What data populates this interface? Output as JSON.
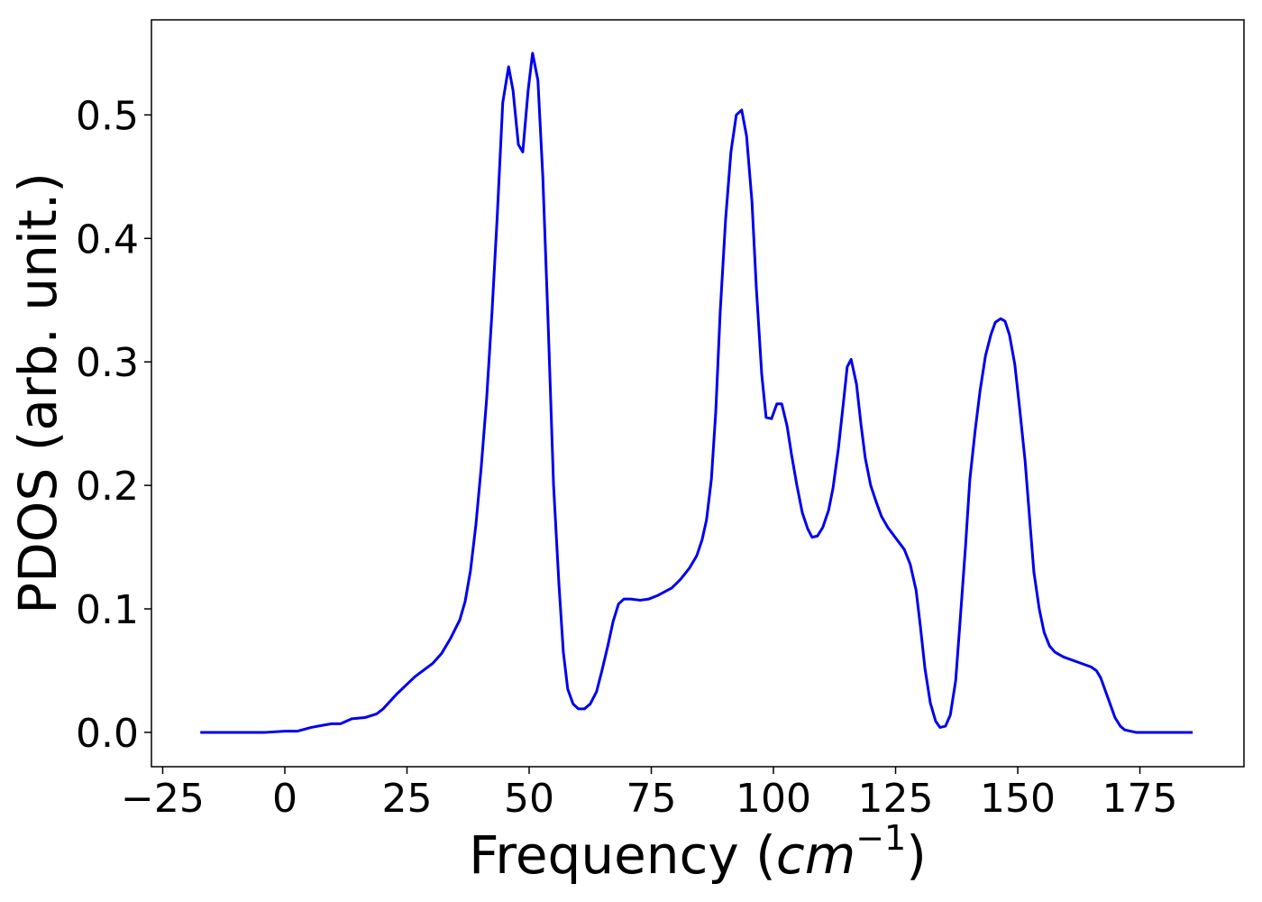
{
  "chart_data": {
    "type": "line",
    "xlabel": [
      "Frequency (",
      "cm",
      "−1",
      ")"
    ],
    "ylabel": "PDOS (arb. unit.)",
    "xlim": [
      -27.3,
      196.3
    ],
    "ylim": [
      -0.0278,
      0.577
    ],
    "xticks": [
      {
        "value": -25,
        "label": "−25"
      },
      0,
      25,
      50,
      75,
      100,
      125,
      150,
      175
    ],
    "yticks": [
      {
        "value": 0,
        "label": "0.0"
      },
      0.1,
      0.2,
      0.3,
      0.4,
      0.5
    ],
    "grid": false,
    "series": [
      {
        "color": "#0000ee",
        "x": [
          -17.3,
          -3.9,
          0,
          2.6,
          5.4,
          8.1,
          9.6,
          11.4,
          13.7,
          16.4,
          18.8,
          20.1,
          22.9,
          26.6,
          30.3,
          32.1,
          33.9,
          35.8,
          36.9,
          38.0,
          39.1,
          40.2,
          41.3,
          42.4,
          43.5,
          44.6,
          45.8,
          46.7,
          47.8,
          48.7,
          49.8,
          50.7,
          51.8,
          52.8,
          53.9,
          55.0,
          56.1,
          57.0,
          57.9,
          59.0,
          60.1,
          61.3,
          62.5,
          63.8,
          64.9,
          66.1,
          67.2,
          68.3,
          69.4,
          70.8,
          72.7,
          74.5,
          76.4,
          79.2,
          81.0,
          82.8,
          84.3,
          85.4,
          86.3,
          87.3,
          88.2,
          89.1,
          90.2,
          91.3,
          92.4,
          93.5,
          94.5,
          95.6,
          96.5,
          97.6,
          98.5,
          99.6,
          100.7,
          101.7,
          102.8,
          103.7,
          104.8,
          105.9,
          107.0,
          107.9,
          109.0,
          110.1,
          111.3,
          112.2,
          113.3,
          114.4,
          115.1,
          115.9,
          117.0,
          117.9,
          118.8,
          119.9,
          121.0,
          122.1,
          123.4,
          125.1,
          126.8,
          128.0,
          129.2,
          130.1,
          131.0,
          132.1,
          133.2,
          134.1,
          135.2,
          136.2,
          137.3,
          138.2,
          139.3,
          140.2,
          141.3,
          142.3,
          143.4,
          144.5,
          145.4,
          146.5,
          147.4,
          148.3,
          149.4,
          150.4,
          151.5,
          152.4,
          153.3,
          154.4,
          155.4,
          156.5,
          157.6,
          159.4,
          162.2,
          165.0,
          166.1,
          167.0,
          167.9,
          169.0,
          169.9,
          171.0,
          171.9,
          174.2,
          185.8
        ],
        "values": [
          0,
          0,
          0.001,
          0.001,
          0.004,
          0.006,
          0.007,
          0.007,
          0.011,
          0.012,
          0.015,
          0.019,
          0.031,
          0.045,
          0.056,
          0.064,
          0.076,
          0.091,
          0.106,
          0.131,
          0.168,
          0.215,
          0.27,
          0.34,
          0.42,
          0.51,
          0.539,
          0.52,
          0.476,
          0.47,
          0.52,
          0.55,
          0.528,
          0.45,
          0.33,
          0.2,
          0.12,
          0.065,
          0.035,
          0.023,
          0.019,
          0.019,
          0.023,
          0.033,
          0.05,
          0.07,
          0.09,
          0.104,
          0.108,
          0.108,
          0.107,
          0.108,
          0.111,
          0.117,
          0.124,
          0.133,
          0.143,
          0.156,
          0.172,
          0.205,
          0.26,
          0.34,
          0.415,
          0.47,
          0.5,
          0.504,
          0.483,
          0.43,
          0.36,
          0.29,
          0.255,
          0.254,
          0.266,
          0.266,
          0.248,
          0.225,
          0.2,
          0.178,
          0.165,
          0.158,
          0.159,
          0.166,
          0.18,
          0.198,
          0.23,
          0.27,
          0.296,
          0.302,
          0.282,
          0.25,
          0.222,
          0.2,
          0.187,
          0.175,
          0.166,
          0.157,
          0.148,
          0.136,
          0.115,
          0.085,
          0.052,
          0.024,
          0.009,
          0.004,
          0.005,
          0.014,
          0.042,
          0.09,
          0.15,
          0.205,
          0.245,
          0.277,
          0.305,
          0.322,
          0.332,
          0.335,
          0.333,
          0.322,
          0.298,
          0.262,
          0.22,
          0.175,
          0.13,
          0.1,
          0.081,
          0.07,
          0.065,
          0.061,
          0.057,
          0.053,
          0.05,
          0.044,
          0.034,
          0.022,
          0.012,
          0.005,
          0.002,
          0,
          0
        ]
      }
    ]
  }
}
